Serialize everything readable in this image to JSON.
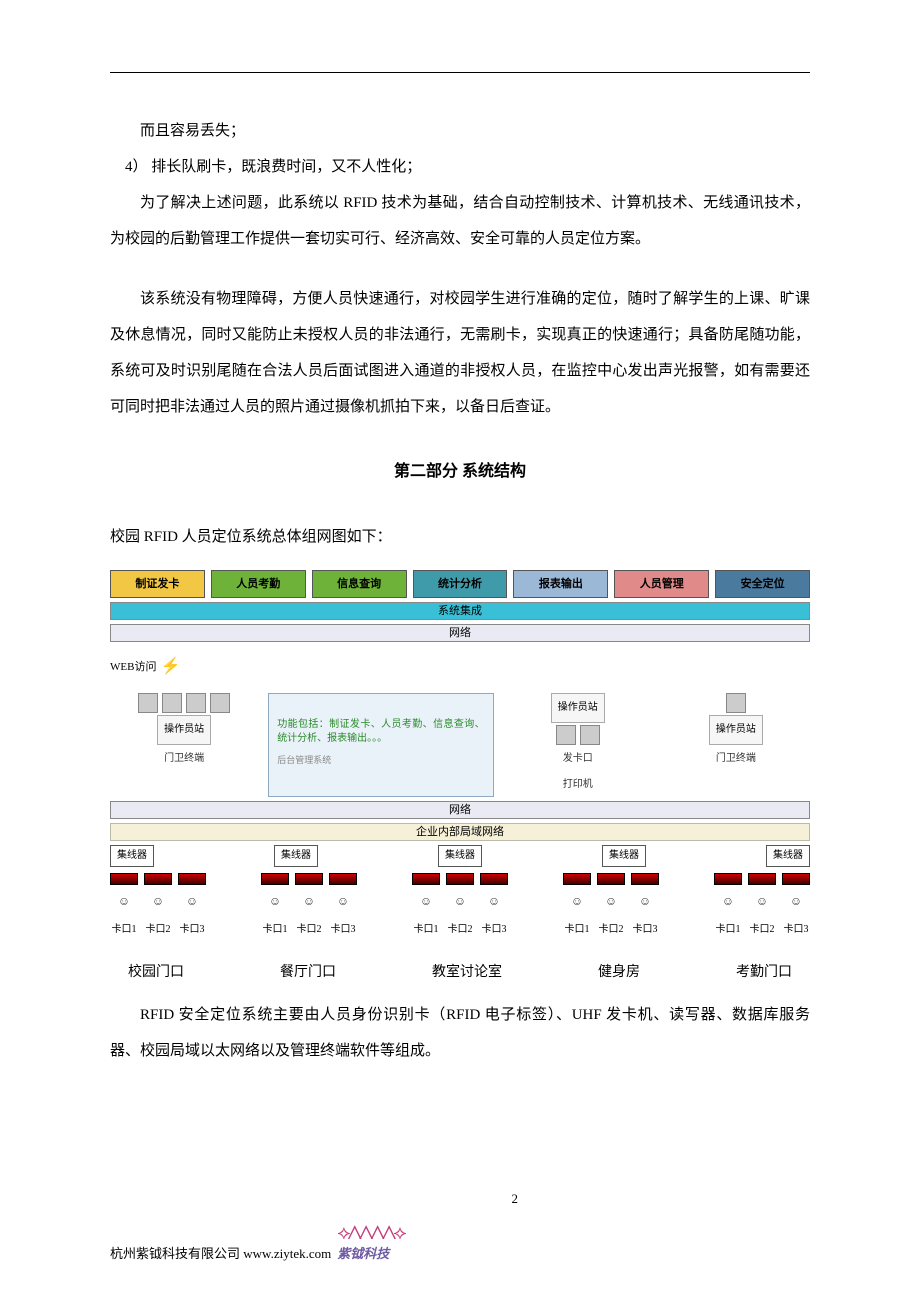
{
  "text": {
    "line_lost": "而且容易丢失；",
    "line_4": "4）  排长队刷卡，既浪费时间，又不人性化；",
    "para_solve": "为了解决上述问题，此系统以 RFID 技术为基础，结合自动控制技术、计算机技术、无线通讯技术，为校园的后勤管理工作提供一套切实可行、经济高效、安全可靠的人员定位方案。",
    "para_system": "该系统没有物理障碍，方便人员快速通行，对校园学生进行准确的定位，随时了解学生的上课、旷课及休息情况，同时又能防止未授权人员的非法通行，无需刷卡，实现真正的快速通行；具备防尾随功能，系统可及时识别尾随在合法人员后面试图进入通道的非授权人员，在监控中心发出声光报警，如有需要还可同时把非法通过人员的照片通过摄像机抓拍下来，以备日后查证。",
    "section_title": "第二部分  系统结构",
    "diagram_intro": "校园 RFID 人员定位系统总体组网图如下：",
    "after_diagram": "RFID 安全定位系统主要由人员身份识别卡（RFID 电子标签）、UHF 发卡机、读写器、数据库服务器、校园局域以太网络以及管理终端软件等组成。"
  },
  "diagram": {
    "top_boxes": [
      {
        "label": "制证发卡",
        "bg": "#f2c744"
      },
      {
        "label": "人员考勤",
        "bg": "#6fb23a"
      },
      {
        "label": "信息查询",
        "bg": "#6fb23a"
      },
      {
        "label": "统计分析",
        "bg": "#3f9baa"
      },
      {
        "label": "报表输出",
        "bg": "#9bb8d6"
      },
      {
        "label": "人员管理",
        "bg": "#e08a8a"
      },
      {
        "label": "安全定位",
        "bg": "#4a7a9e"
      }
    ],
    "bar_integration": {
      "label": "系统集成",
      "bg": "#39c0d6"
    },
    "bar_network1": {
      "label": "网络",
      "bg": "#eaeaf4"
    },
    "web_access": "WEB访问",
    "center_desc": "功能包括：制证发卡、人员考勤、信息查询、统计分析、报表输出。。。",
    "center_sub": "后台管理系统",
    "workstation": "操作员站",
    "guard_terminal": "门卫终端",
    "card_point": "发卡口",
    "printer": "打印机",
    "bar_network2": {
      "label": "网络",
      "bg": "#eaeaf4"
    },
    "bar_lan": {
      "label": "企业内部局域网络",
      "bg": "#f6f0d8"
    },
    "collector": "集线器",
    "ports": [
      "卡口1",
      "卡口2",
      "卡口3"
    ],
    "locations": [
      "校园门口",
      "餐厅门口",
      "教室讨论室",
      "健身房",
      "考勤门口"
    ]
  },
  "footer": {
    "page_number": "2",
    "company": "杭州紫钺科技有限公司 www.ziytek.com",
    "logo_text": "紫钺科技"
  },
  "colors": {
    "text": "#000000",
    "logo_wave": "#c23b7a",
    "logo_text": "#6f5ba3"
  }
}
